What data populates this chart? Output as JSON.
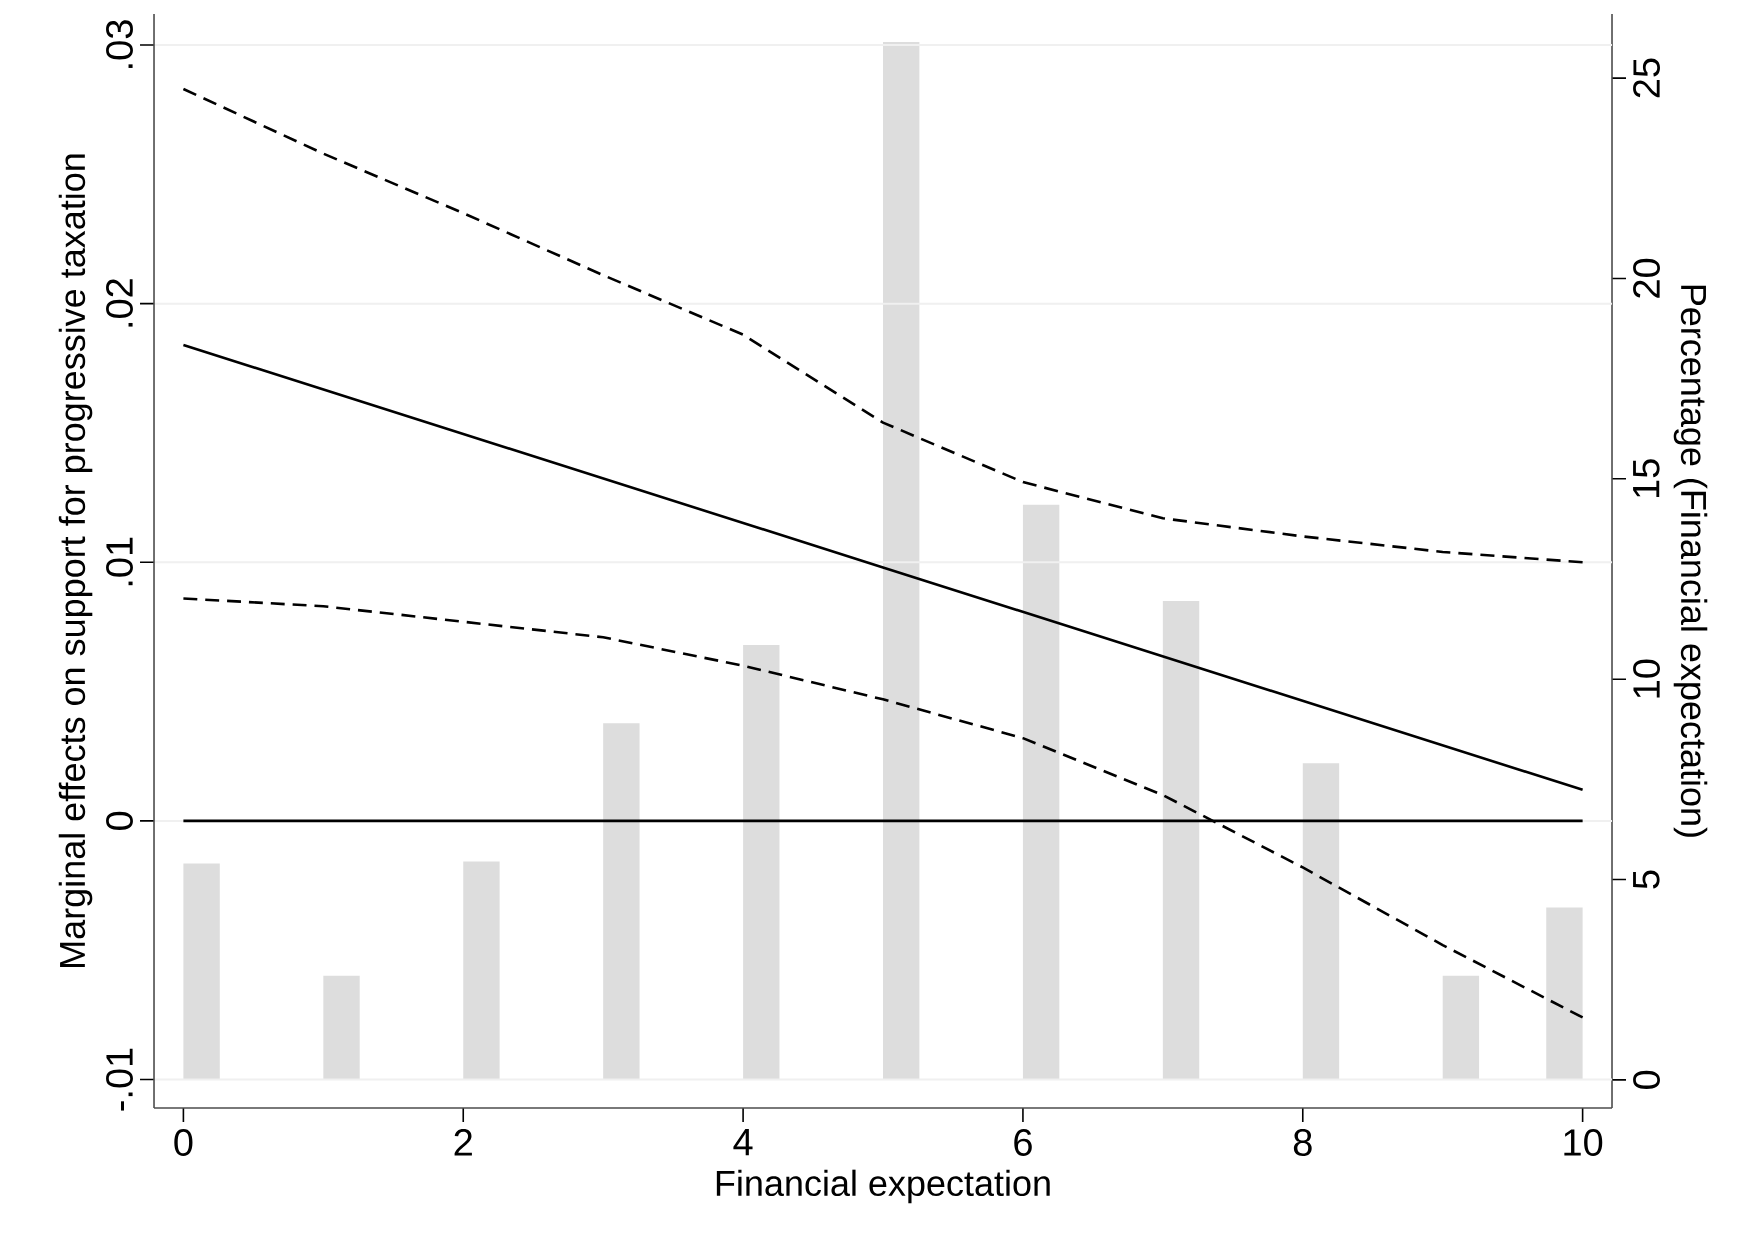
{
  "chart_data": {
    "type": "line",
    "xlabel": "Financial expectation",
    "ylabel": "Marginal effects on support for progressive taxation",
    "y2label": "Percentage (Financial expectation)",
    "xlim": [
      -0.21,
      10.21
    ],
    "xticks": [
      0,
      2,
      4,
      6,
      8,
      10
    ],
    "ylim": [
      -0.0111,
      0.0312
    ],
    "yticks": [
      {
        "value": -0.01,
        "label": "-.01"
      },
      0,
      {
        "value": 0.01,
        "label": ".01"
      },
      {
        "value": 0.02,
        "label": ".02"
      },
      {
        "value": 0.03,
        "label": ".03"
      }
    ],
    "y2lim": [
      -0.7,
      26.6
    ],
    "y2ticks": [
      0,
      5,
      10,
      15,
      20,
      25
    ],
    "grid": "y",
    "ref_lines": [
      {
        "axis": "y",
        "value": 0,
        "color": "#000000"
      }
    ],
    "series": [
      {
        "type": "bar",
        "axis": "y2",
        "color": "#dddddd",
        "x": [
          0.13,
          1.13,
          2.13,
          3.13,
          4.13,
          5.13,
          6.13,
          7.13,
          8.13,
          9.13,
          9.87
        ],
        "values": [
          5.4,
          2.6,
          5.45,
          8.9,
          10.85,
          25.9,
          14.35,
          11.95,
          7.9,
          2.6,
          4.3
        ]
      },
      {
        "color": "#000000",
        "line_style": "solid",
        "x": [
          0,
          5,
          10
        ],
        "values": [
          0.0184,
          0.0098,
          0.0012
        ]
      },
      {
        "color": "#000000",
        "line_style": "dashed",
        "x": [
          0,
          1,
          2,
          3,
          4,
          5,
          6,
          7,
          8,
          9,
          10
        ],
        "values": [
          0.0283,
          0.0258,
          0.0235,
          0.0211,
          0.0188,
          0.0154,
          0.0131,
          0.0117,
          0.011,
          0.0104,
          0.01
        ]
      },
      {
        "color": "#000000",
        "line_style": "dashed",
        "x": [
          0,
          1,
          2,
          3,
          4,
          5,
          6,
          7,
          8,
          9,
          10
        ],
        "values": [
          0.0086,
          0.0083,
          0.0077,
          0.0071,
          0.006,
          0.0047,
          0.0032,
          0.001,
          -0.0018,
          -0.0048,
          -0.0076
        ]
      }
    ]
  }
}
